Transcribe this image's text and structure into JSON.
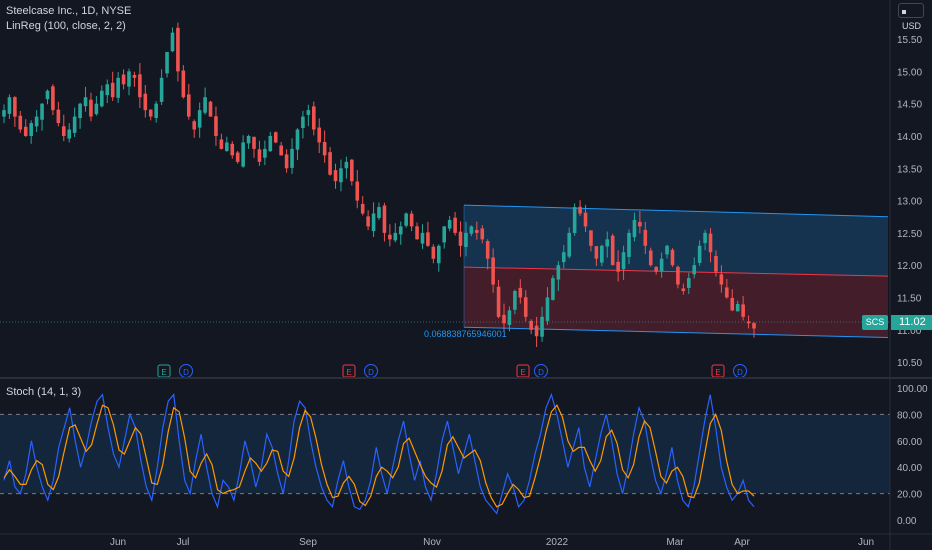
{
  "header": {
    "title": "Steelcase Inc., 1D, NYSE",
    "indicator": "LinReg (100, close, 2, 2)",
    "currency": "USD"
  },
  "stoch": {
    "label": "Stoch (14, 1, 3)"
  },
  "last_price": {
    "symbol": "SCS",
    "value": "11.02"
  },
  "regression_value": "0.068838765946001",
  "events": [
    {
      "type": "E",
      "month_pos": "Jun-Jul",
      "x_label": "between Jun and Jul"
    },
    {
      "type": "D"
    },
    {
      "type": "E"
    },
    {
      "type": "D"
    },
    {
      "type": "E"
    },
    {
      "type": "D"
    },
    {
      "type": "E"
    },
    {
      "type": "D"
    }
  ],
  "chart_data": [
    {
      "type": "candlestick",
      "title": "Steelcase Inc., 1D, NYSE",
      "x_ticks": [
        "Jun",
        "Jul",
        "Sep",
        "Nov",
        "2022",
        "Mar",
        "Apr",
        "Jun"
      ],
      "y_ticks": [
        "15.50",
        "15.00",
        "14.50",
        "14.00",
        "13.50",
        "13.00",
        "12.50",
        "12.00",
        "11.50",
        "11.00",
        "10.50"
      ],
      "ylim": [
        10.3,
        15.95
      ],
      "grid": false,
      "colors": {
        "up": "#26a69a",
        "down": "#ef5350",
        "channel_upper": "#2196f3",
        "channel_lower": "#f23645"
      },
      "close_series": [
        14.4,
        14.6,
        14.3,
        14.1,
        14.0,
        14.2,
        14.3,
        14.5,
        14.7,
        14.4,
        14.2,
        14.0,
        14.1,
        14.3,
        14.5,
        14.6,
        14.3,
        14.5,
        14.7,
        14.8,
        14.6,
        14.9,
        14.8,
        15.0,
        14.9,
        14.6,
        14.4,
        14.3,
        14.5,
        14.9,
        15.3,
        15.6,
        15.0,
        14.6,
        14.3,
        14.1,
        14.4,
        14.6,
        14.3,
        14.0,
        13.8,
        13.9,
        13.7,
        13.6,
        13.9,
        14.0,
        13.8,
        13.6,
        13.8,
        14.0,
        13.9,
        13.7,
        13.5,
        13.8,
        14.1,
        14.3,
        14.4,
        14.1,
        13.9,
        13.7,
        13.4,
        13.3,
        13.5,
        13.6,
        13.3,
        13.0,
        12.8,
        12.6,
        12.8,
        12.9,
        12.5,
        12.4,
        12.5,
        12.6,
        12.8,
        12.6,
        12.4,
        12.5,
        12.3,
        12.1,
        12.3,
        12.6,
        12.7,
        12.5,
        12.3,
        12.5,
        12.6,
        12.5,
        12.4,
        12.1,
        11.7,
        11.2,
        11.1,
        11.3,
        11.6,
        11.5,
        11.2,
        11.0,
        10.9,
        11.2,
        11.5,
        11.8,
        12.0,
        12.2,
        12.5,
        12.9,
        12.8,
        12.6,
        12.3,
        12.1,
        12.3,
        12.4,
        12.0,
        11.9,
        12.2,
        12.5,
        12.7,
        12.6,
        12.3,
        12.0,
        11.9,
        12.1,
        12.3,
        12.0,
        11.7,
        11.6,
        11.8,
        12.0,
        12.3,
        12.5,
        12.2,
        11.9,
        11.7,
        11.5,
        11.3,
        11.4,
        11.2,
        11.1,
        11.02
      ]
    },
    {
      "type": "line",
      "title": "Stoch (14, 1, 3)",
      "y_ticks": [
        "100.00",
        "80.00",
        "60.00",
        "40.00",
        "20.00",
        "0.00"
      ],
      "ylim": [
        -8,
        105
      ],
      "bands": [
        20,
        80
      ],
      "series": [
        {
          "name": "%K",
          "color": "#2962ff",
          "values": [
            30,
            45,
            25,
            20,
            35,
            60,
            40,
            25,
            15,
            30,
            55,
            70,
            85,
            60,
            40,
            55,
            75,
            90,
            95,
            70,
            50,
            40,
            60,
            80,
            70,
            45,
            25,
            15,
            40,
            70,
            90,
            95,
            60,
            30,
            20,
            45,
            65,
            40,
            20,
            10,
            30,
            25,
            15,
            35,
            60,
            45,
            25,
            40,
            65,
            55,
            35,
            20,
            45,
            75,
            90,
            85,
            60,
            40,
            25,
            15,
            10,
            30,
            45,
            25,
            10,
            8,
            15,
            30,
            55,
            35,
            20,
            40,
            60,
            75,
            50,
            30,
            45,
            25,
            15,
            35,
            60,
            75,
            55,
            35,
            50,
            65,
            45,
            25,
            15,
            10,
            5,
            20,
            35,
            25,
            10,
            15,
            30,
            50,
            65,
            85,
            95,
            80,
            60,
            40,
            55,
            70,
            40,
            25,
            45,
            65,
            80,
            60,
            35,
            20,
            40,
            65,
            85,
            75,
            50,
            30,
            20,
            35,
            55,
            30,
            15,
            10,
            25,
            50,
            75,
            95,
            70,
            40,
            25,
            15,
            20,
            30,
            15,
            10
          ]
        },
        {
          "name": "%D",
          "color": "#ff9800",
          "values": [
            32,
            38,
            33,
            27,
            27,
            38,
            45,
            42,
            27,
            23,
            33,
            52,
            70,
            72,
            62,
            52,
            57,
            73,
            87,
            85,
            72,
            53,
            50,
            60,
            70,
            65,
            47,
            28,
            27,
            42,
            67,
            85,
            82,
            62,
            37,
            32,
            43,
            50,
            42,
            23,
            20,
            22,
            23,
            25,
            37,
            47,
            43,
            37,
            43,
            53,
            52,
            37,
            33,
            47,
            70,
            83,
            78,
            62,
            42,
            27,
            17,
            18,
            28,
            33,
            27,
            14,
            11,
            18,
            33,
            40,
            37,
            32,
            40,
            58,
            62,
            52,
            42,
            33,
            28,
            25,
            37,
            57,
            63,
            55,
            47,
            50,
            53,
            45,
            28,
            17,
            10,
            12,
            20,
            27,
            23,
            17,
            18,
            32,
            48,
            67,
            82,
            87,
            78,
            60,
            52,
            55,
            55,
            45,
            37,
            45,
            63,
            68,
            58,
            38,
            32,
            42,
            63,
            75,
            70,
            52,
            33,
            28,
            37,
            40,
            33,
            18,
            17,
            28,
            50,
            73,
            80,
            68,
            45,
            27,
            20,
            22,
            22,
            18
          ]
        }
      ]
    }
  ]
}
